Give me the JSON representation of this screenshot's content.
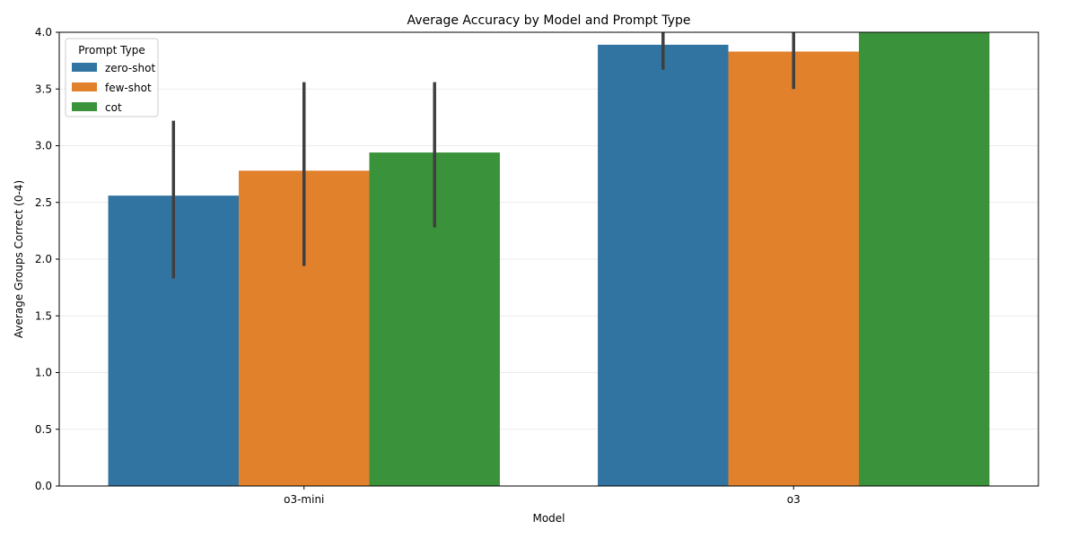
{
  "chart_data": {
    "type": "bar",
    "title": "Average Accuracy by Model and Prompt Type",
    "xlabel": "Model",
    "ylabel": "Average Groups Correct (0-4)",
    "categories": [
      "o3-mini",
      "o3"
    ],
    "ylim": [
      0,
      4.0
    ],
    "yticks": [
      "0.0",
      "0.5",
      "1.0",
      "1.5",
      "2.0",
      "2.5",
      "3.0",
      "3.5",
      "4.0"
    ],
    "grid": "y",
    "legend": {
      "title": "Prompt Type",
      "placement": "top-left"
    },
    "series": [
      {
        "name": "zero-shot",
        "color": "#3274a1",
        "values": [
          2.56,
          3.89
        ],
        "error_low": [
          1.83,
          3.67
        ],
        "error_high": [
          3.22,
          4.11
        ]
      },
      {
        "name": "few-shot",
        "color": "#e1812c",
        "values": [
          2.78,
          3.83
        ],
        "error_low": [
          1.94,
          3.5
        ],
        "error_high": [
          3.56,
          4.11
        ]
      },
      {
        "name": "cot",
        "color": "#3a923a",
        "values": [
          2.94,
          4.0
        ],
        "error_low": [
          2.28,
          4.0
        ],
        "error_high": [
          3.56,
          4.0
        ]
      }
    ]
  }
}
